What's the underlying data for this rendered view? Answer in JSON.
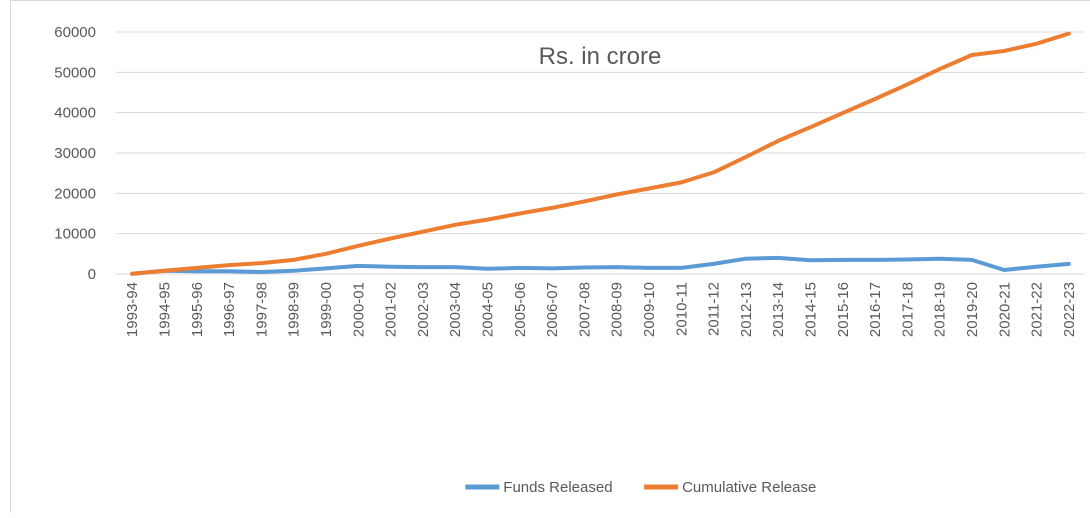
{
  "chart_data": {
    "type": "line",
    "title": "Rs. in crore",
    "categories": [
      "1993-94",
      "1994-95",
      "1995-96",
      "1996-97",
      "1997-98",
      "1998-99",
      "1999-00",
      "2000-01",
      "2001-02",
      "2002-03",
      "2003-04",
      "2004-05",
      "2005-06",
      "2006-07",
      "2007-08",
      "2008-09",
      "2009-10",
      "2010-11",
      "2011-12",
      "2012-13",
      "2013-14",
      "2014-15",
      "2015-16",
      "2016-17",
      "2017-18",
      "2018-19",
      "2019-20",
      "2020-21",
      "2021-22",
      "2022-23"
    ],
    "series": [
      {
        "name": "Funds Released",
        "color": "#5b9bd5",
        "values": [
          40,
          800,
          700,
          700,
          500,
          800,
          1400,
          2000,
          1800,
          1700,
          1700,
          1300,
          1500,
          1400,
          1600,
          1700,
          1500,
          1500,
          2500,
          3800,
          4000,
          3400,
          3500,
          3500,
          3600,
          3800,
          3500,
          1000,
          1800,
          2500
        ]
      },
      {
        "name": "Cumulative Release",
        "color": "#ed7d31",
        "values": [
          40,
          800,
          1500,
          2200,
          2700,
          3500,
          5000,
          7000,
          8800,
          10500,
          12200,
          13500,
          15000,
          16400,
          18000,
          19700,
          21200,
          22700,
          25200,
          29000,
          33000,
          36400,
          39900,
          43400,
          47000,
          50800,
          54300,
          55300,
          57100,
          59600
        ]
      }
    ],
    "ylim": [
      0,
      60000
    ],
    "yticks": [
      0,
      10000,
      20000,
      30000,
      40000,
      50000,
      60000
    ],
    "grid": true,
    "legend": "bottom"
  }
}
